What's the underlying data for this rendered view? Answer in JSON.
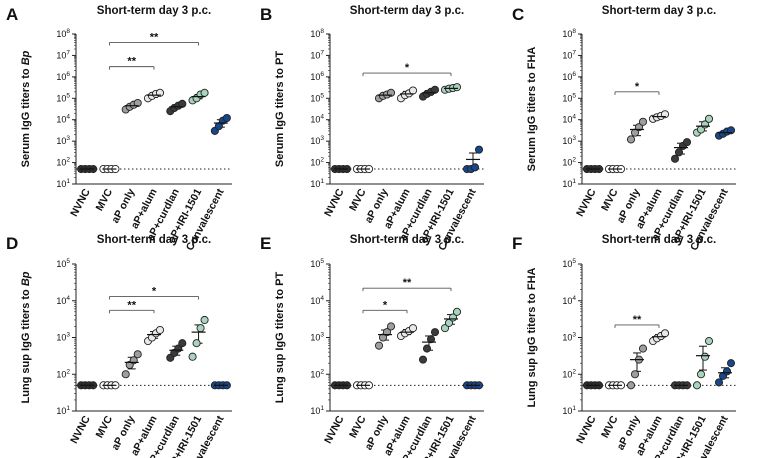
{
  "colors": {
    "NVNC": "#2e2e2e",
    "MVC": "#ffffff",
    "aP only": "#9e9e9e",
    "aP+alum": "#e9e9e9",
    "aP+curdlan": "#3a3a3a",
    "aP+IRI-1501": "#a8d3bd",
    "Convalescent": "#17468a"
  },
  "categories": [
    "NVNC",
    "MVC",
    "aP only",
    "aP+alum",
    "aP+curdlan",
    "aP+IRI-1501",
    "Convalescent"
  ],
  "chart_data": [
    {
      "panel": "A",
      "type": "scatter",
      "title": "Short-term day 3 p.c.",
      "ylabel_prefix": "Serum IgG titers to ",
      "ylabel_target": "Bp",
      "ylabel_italic": true,
      "yscale": "log10",
      "ylim_exp": [
        1,
        8
      ],
      "ticks": [
        {
          "base": "10",
          "exp": "1"
        },
        {
          "base": "10",
          "exp": "2"
        },
        {
          "base": "10",
          "exp": "3"
        },
        {
          "base": "10",
          "exp": "4"
        },
        {
          "base": "10",
          "exp": "5"
        },
        {
          "base": "10",
          "exp": "6"
        },
        {
          "base": "10",
          "exp": "7"
        },
        {
          "base": "10",
          "exp": "8"
        }
      ],
      "baseline": 50,
      "groups": [
        {
          "name": "NVNC",
          "points": [
            50,
            50,
            50,
            50
          ],
          "mean": 50
        },
        {
          "name": "MVC",
          "points": [
            50,
            50,
            50,
            50
          ],
          "mean": 50
        },
        {
          "name": "aP only",
          "points": [
            30000,
            40000,
            50000,
            60000
          ],
          "mean": 45000,
          "err": [
            38000,
            52000
          ]
        },
        {
          "name": "aP+alum",
          "points": [
            100000,
            130000,
            160000,
            180000
          ],
          "mean": 140000,
          "err": [
            110000,
            170000
          ]
        },
        {
          "name": "aP+curdlan",
          "points": [
            25000,
            35000,
            45000,
            55000
          ],
          "mean": 40000,
          "err": [
            32000,
            50000
          ]
        },
        {
          "name": "aP+IRI-1501",
          "points": [
            80000,
            100000,
            150000,
            180000
          ],
          "mean": 120000,
          "err": [
            95000,
            150000
          ]
        },
        {
          "name": "Convalescent",
          "points": [
            3000,
            5000,
            9000,
            12000
          ],
          "mean": 7000,
          "err": [
            4500,
            10000
          ]
        }
      ],
      "brackets": [
        {
          "from": "MVC",
          "to": "aP+alum",
          "label": "**",
          "y": 3000000
        },
        {
          "from": "MVC",
          "to": "aP+IRI-1501",
          "label": "**",
          "y": 40000000
        }
      ]
    },
    {
      "panel": "B",
      "type": "scatter",
      "title": "Short-term day 3 p.c.",
      "ylabel_prefix": "Serum IgG titers to ",
      "ylabel_target": "PT",
      "ylabel_italic": false,
      "yscale": "log10",
      "ylim_exp": [
        1,
        8
      ],
      "ticks": [
        {
          "base": "10",
          "exp": "1"
        },
        {
          "base": "10",
          "exp": "2"
        },
        {
          "base": "10",
          "exp": "3"
        },
        {
          "base": "10",
          "exp": "4"
        },
        {
          "base": "10",
          "exp": "5"
        },
        {
          "base": "10",
          "exp": "6"
        },
        {
          "base": "10",
          "exp": "7"
        },
        {
          "base": "10",
          "exp": "8"
        }
      ],
      "baseline": 50,
      "groups": [
        {
          "name": "NVNC",
          "points": [
            50,
            50,
            50,
            50
          ],
          "mean": 50
        },
        {
          "name": "MVC",
          "points": [
            50,
            50,
            50,
            50
          ],
          "mean": 50
        },
        {
          "name": "aP only",
          "points": [
            100000,
            130000,
            150000,
            180000
          ],
          "mean": 140000,
          "err": [
            110000,
            170000
          ]
        },
        {
          "name": "aP+alum",
          "points": [
            100000,
            140000,
            170000,
            230000
          ],
          "mean": 160000,
          "err": [
            120000,
            210000
          ]
        },
        {
          "name": "aP+curdlan",
          "points": [
            120000,
            160000,
            200000,
            250000
          ],
          "mean": 180000,
          "err": [
            140000,
            230000
          ]
        },
        {
          "name": "aP+IRI-1501",
          "points": [
            250000,
            280000,
            300000,
            330000
          ],
          "mean": 290000,
          "err": [
            265000,
            315000
          ]
        },
        {
          "name": "Convalescent",
          "points": [
            50,
            50,
            60,
            400
          ],
          "mean": 140,
          "err": [
            60,
            280
          ]
        }
      ],
      "brackets": [
        {
          "from": "MVC",
          "to": "aP+IRI-1501",
          "label": "*",
          "y": 1500000
        }
      ]
    },
    {
      "panel": "C",
      "type": "scatter",
      "title": "Short-term day 3 p.c.",
      "ylabel_prefix": "Serum IgG titers to ",
      "ylabel_target": "FHA",
      "ylabel_italic": false,
      "yscale": "log10",
      "ylim_exp": [
        1,
        8
      ],
      "ticks": [
        {
          "base": "10",
          "exp": "1"
        },
        {
          "base": "10",
          "exp": "2"
        },
        {
          "base": "10",
          "exp": "3"
        },
        {
          "base": "10",
          "exp": "4"
        },
        {
          "base": "10",
          "exp": "5"
        },
        {
          "base": "10",
          "exp": "6"
        },
        {
          "base": "10",
          "exp": "7"
        },
        {
          "base": "10",
          "exp": "8"
        }
      ],
      "baseline": 50,
      "groups": [
        {
          "name": "NVNC",
          "points": [
            50,
            50,
            50,
            50
          ],
          "mean": 50
        },
        {
          "name": "MVC",
          "points": [
            50,
            50,
            50,
            50
          ],
          "mean": 50
        },
        {
          "name": "aP only",
          "points": [
            1200,
            2500,
            4500,
            8000
          ],
          "mean": 3500,
          "err": [
            1800,
            5500
          ]
        },
        {
          "name": "aP+alum",
          "points": [
            11000,
            13000,
            15000,
            18000
          ],
          "mean": 14000,
          "err": [
            12000,
            16500
          ]
        },
        {
          "name": "aP+curdlan",
          "points": [
            150,
            300,
            600,
            900
          ],
          "mean": 500,
          "err": [
            250,
            800
          ]
        },
        {
          "name": "aP+IRI-1501",
          "points": [
            2500,
            3500,
            6000,
            11000
          ],
          "mean": 5000,
          "err": [
            3000,
            8000
          ]
        },
        {
          "name": "Convalescent",
          "points": [
            1800,
            2200,
            2800,
            3200
          ],
          "mean": 2500,
          "err": [
            2100,
            3000
          ]
        }
      ],
      "brackets": [
        {
          "from": "MVC",
          "to": "aP+alum",
          "label": "*",
          "y": 200000
        }
      ]
    },
    {
      "panel": "D",
      "type": "scatter",
      "title": "Short-term day 3 p.c.",
      "ylabel_prefix": "Lung sup IgG titers to ",
      "ylabel_target": "Bp",
      "ylabel_italic": true,
      "yscale": "log10",
      "ylim_exp": [
        1,
        5
      ],
      "ticks": [
        {
          "base": "10",
          "exp": "1"
        },
        {
          "base": "10",
          "exp": "2"
        },
        {
          "base": "10",
          "exp": "3"
        },
        {
          "base": "10",
          "exp": "4"
        },
        {
          "base": "10",
          "exp": "5"
        }
      ],
      "baseline": 50,
      "groups": [
        {
          "name": "NVNC",
          "points": [
            50,
            50,
            50,
            50
          ],
          "mean": 50
        },
        {
          "name": "MVC",
          "points": [
            50,
            50,
            50,
            50
          ],
          "mean": 50
        },
        {
          "name": "aP only",
          "points": [
            100,
            180,
            240,
            350
          ],
          "mean": 210,
          "err": [
            140,
            290
          ]
        },
        {
          "name": "aP+alum",
          "points": [
            800,
            1000,
            1300,
            1600
          ],
          "mean": 1200,
          "err": [
            950,
            1450
          ]
        },
        {
          "name": "aP+curdlan",
          "points": [
            280,
            380,
            500,
            700
          ],
          "mean": 450,
          "err": [
            330,
            580
          ]
        },
        {
          "name": "aP+IRI-1501",
          "points": [
            300,
            700,
            1800,
            3000
          ],
          "mean": 1400,
          "err": [
            700,
            2200
          ]
        },
        {
          "name": "Convalescent",
          "points": [
            50,
            50,
            50,
            50
          ],
          "mean": 50
        }
      ],
      "brackets": [
        {
          "from": "MVC",
          "to": "aP+alum",
          "label": "**",
          "y": 5500
        },
        {
          "from": "MVC",
          "to": "aP+IRI-1501",
          "label": "*",
          "y": 13000
        }
      ]
    },
    {
      "panel": "E",
      "type": "scatter",
      "title": "Short-term day 3 p.c.",
      "ylabel_prefix": "Lung sup IgG titers to ",
      "ylabel_target": "PT",
      "ylabel_italic": false,
      "yscale": "log10",
      "ylim_exp": [
        1,
        5
      ],
      "ticks": [
        {
          "base": "10",
          "exp": "1"
        },
        {
          "base": "10",
          "exp": "2"
        },
        {
          "base": "10",
          "exp": "3"
        },
        {
          "base": "10",
          "exp": "4"
        },
        {
          "base": "10",
          "exp": "5"
        }
      ],
      "baseline": 50,
      "groups": [
        {
          "name": "NVNC",
          "points": [
            50,
            50,
            50,
            50
          ],
          "mean": 50
        },
        {
          "name": "MVC",
          "points": [
            50,
            50,
            50,
            50
          ],
          "mean": 50
        },
        {
          "name": "aP only",
          "points": [
            600,
            1000,
            1400,
            2000
          ],
          "mean": 1200,
          "err": [
            850,
            1600
          ]
        },
        {
          "name": "aP+alum",
          "points": [
            1100,
            1300,
            1500,
            1800
          ],
          "mean": 1400,
          "err": [
            1200,
            1650
          ]
        },
        {
          "name": "aP+curdlan",
          "points": [
            250,
            500,
            900,
            1400
          ],
          "mean": 750,
          "err": [
            450,
            1100
          ]
        },
        {
          "name": "aP+IRI-1501",
          "points": [
            1800,
            2500,
            3500,
            5000
          ],
          "mean": 3200,
          "err": [
            2300,
            4200
          ]
        },
        {
          "name": "Convalescent",
          "points": [
            50,
            50,
            50,
            50
          ],
          "mean": 50
        }
      ],
      "brackets": [
        {
          "from": "MVC",
          "to": "aP+alum",
          "label": "*",
          "y": 5500
        },
        {
          "from": "MVC",
          "to": "aP+IRI-1501",
          "label": "**",
          "y": 22000
        }
      ]
    },
    {
      "panel": "F",
      "type": "scatter",
      "title": "Short-term day 3 p.c.",
      "ylabel_prefix": "Lung sup IgG titers to ",
      "ylabel_target": "FHA",
      "ylabel_italic": false,
      "yscale": "log10",
      "ylim_exp": [
        1,
        5
      ],
      "ticks": [
        {
          "base": "10",
          "exp": "1"
        },
        {
          "base": "10",
          "exp": "2"
        },
        {
          "base": "10",
          "exp": "3"
        },
        {
          "base": "10",
          "exp": "4"
        },
        {
          "base": "10",
          "exp": "5"
        }
      ],
      "baseline": 50,
      "groups": [
        {
          "name": "NVNC",
          "points": [
            50,
            50,
            50,
            50
          ],
          "mean": 50
        },
        {
          "name": "MVC",
          "points": [
            50,
            50,
            50,
            50
          ],
          "mean": 50
        },
        {
          "name": "aP only",
          "points": [
            50,
            100,
            250,
            500
          ],
          "mean": 250,
          "err": [
            120,
            380
          ]
        },
        {
          "name": "aP+alum",
          "points": [
            800,
            950,
            1100,
            1300
          ],
          "mean": 1050,
          "err": [
            900,
            1200
          ]
        },
        {
          "name": "aP+curdlan",
          "points": [
            50,
            50,
            50,
            50
          ],
          "mean": 50
        },
        {
          "name": "aP+IRI-1501",
          "points": [
            50,
            100,
            300,
            800
          ],
          "mean": 320,
          "err": [
            130,
            580
          ]
        },
        {
          "name": "Convalescent",
          "points": [
            60,
            90,
            120,
            200
          ],
          "mean": 110,
          "err": [
            80,
            150
          ]
        }
      ],
      "brackets": [
        {
          "from": "MVC",
          "to": "aP+alum",
          "label": "**",
          "y": 2200
        }
      ]
    }
  ]
}
